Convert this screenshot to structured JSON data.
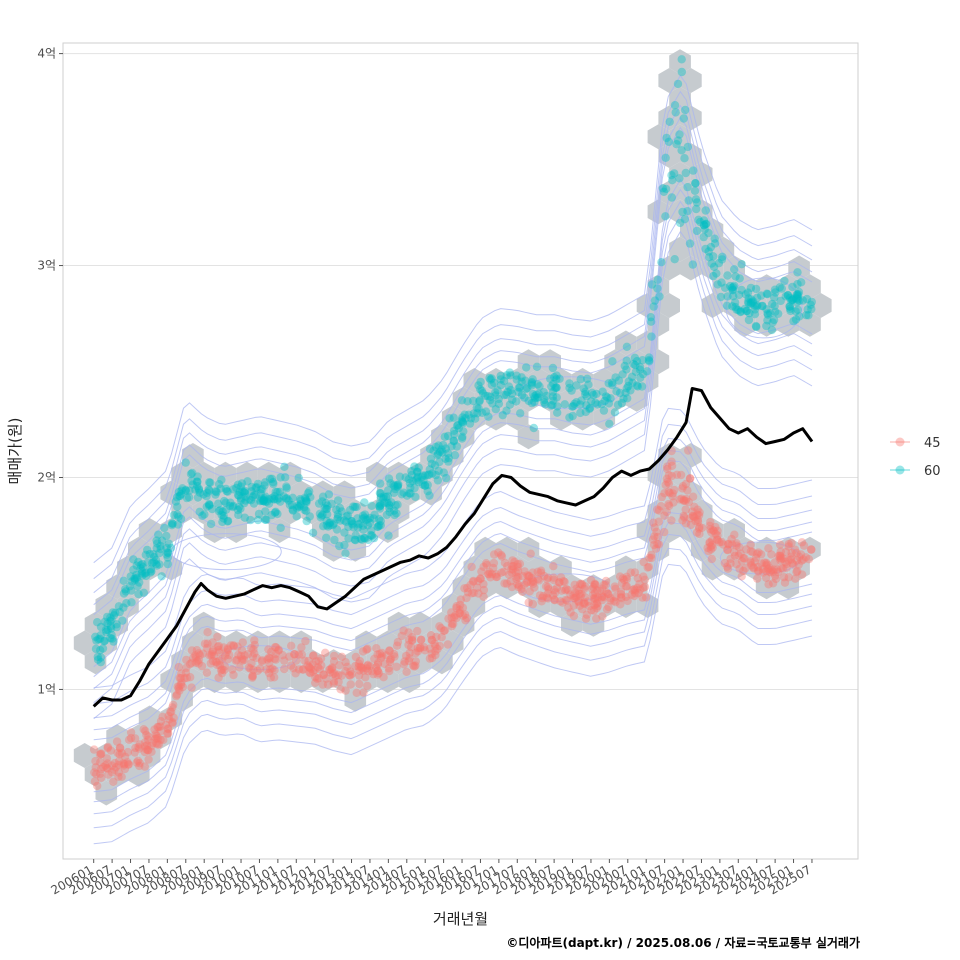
{
  "chart_data": {
    "type": "scatter",
    "xlabel": "거래년월",
    "ylabel": "매매가(원)",
    "x_ticks": [
      "200601",
      "200607",
      "200701",
      "200707",
      "200801",
      "200807",
      "200901",
      "200907",
      "201001",
      "201007",
      "201101",
      "201107",
      "201201",
      "201207",
      "201301",
      "201307",
      "201401",
      "201407",
      "201501",
      "201507",
      "201601",
      "201607",
      "201701",
      "201707",
      "201801",
      "201807",
      "201901",
      "201907",
      "202001",
      "202007",
      "202101",
      "202107",
      "202201",
      "202207",
      "202301",
      "202307",
      "202401",
      "202407",
      "202501",
      "202507"
    ],
    "y_ticks": [
      {
        "value": 100000000,
        "label": "1억"
      },
      {
        "value": 200000000,
        "label": "2억"
      },
      {
        "value": 300000000,
        "label": "3억"
      },
      {
        "value": 400000000,
        "label": "4억"
      }
    ],
    "ylim": [
      20000000,
      405000000
    ],
    "xlim": [
      "2005-03",
      "2026-10"
    ],
    "grid": "horizontal",
    "legend_placement": "right",
    "legend": [
      {
        "name": "45",
        "color": "#f8766d"
      },
      {
        "name": "60",
        "color": "#00bfc4"
      }
    ],
    "colors": {
      "hexbin": "#c6cbcf",
      "contour": "#aab6f0",
      "median_line": "#000000"
    },
    "series": [
      {
        "name": "45",
        "trend": [
          [
            "2006-01",
            64000000
          ],
          [
            "2006-07",
            65000000
          ],
          [
            "2007-01",
            70000000
          ],
          [
            "2007-07",
            74000000
          ],
          [
            "2008-01",
            82000000
          ],
          [
            "2008-07",
            110000000
          ],
          [
            "2009-01",
            118000000
          ],
          [
            "2009-07",
            115000000
          ],
          [
            "2010-01",
            116000000
          ],
          [
            "2010-07",
            112000000
          ],
          [
            "2011-01",
            113000000
          ],
          [
            "2011-07",
            112000000
          ],
          [
            "2012-01",
            111000000
          ],
          [
            "2012-07",
            108000000
          ],
          [
            "2013-01",
            106000000
          ],
          [
            "2013-07",
            110000000
          ],
          [
            "2014-01",
            114000000
          ],
          [
            "2014-07",
            118000000
          ],
          [
            "2015-01",
            120000000
          ],
          [
            "2015-07",
            127000000
          ],
          [
            "2016-01",
            140000000
          ],
          [
            "2016-07",
            152000000
          ],
          [
            "2017-01",
            157000000
          ],
          [
            "2017-07",
            153000000
          ],
          [
            "2018-01",
            150000000
          ],
          [
            "2018-07",
            147000000
          ],
          [
            "2019-01",
            145000000
          ],
          [
            "2019-07",
            143000000
          ],
          [
            "2020-01",
            145000000
          ],
          [
            "2020-07",
            148000000
          ],
          [
            "2021-01",
            150000000
          ],
          [
            "2021-07",
            196000000
          ],
          [
            "2022-01",
            195000000
          ],
          [
            "2022-07",
            178000000
          ],
          [
            "2023-01",
            168000000
          ],
          [
            "2023-07",
            165000000
          ],
          [
            "2024-01",
            158000000
          ],
          [
            "2024-07",
            158000000
          ],
          [
            "2025-01",
            160000000
          ],
          [
            "2025-07",
            162000000
          ]
        ]
      },
      {
        "name": "60",
        "trend": [
          [
            "2006-01",
            123000000
          ],
          [
            "2006-07",
            130000000
          ],
          [
            "2007-01",
            150000000
          ],
          [
            "2007-07",
            158000000
          ],
          [
            "2008-01",
            167000000
          ],
          [
            "2008-07",
            200000000
          ],
          [
            "2009-01",
            192000000
          ],
          [
            "2009-07",
            188000000
          ],
          [
            "2010-01",
            190000000
          ],
          [
            "2010-07",
            192000000
          ],
          [
            "2011-01",
            190000000
          ],
          [
            "2011-07",
            188000000
          ],
          [
            "2012-01",
            185000000
          ],
          [
            "2012-07",
            180000000
          ],
          [
            "2013-01",
            178000000
          ],
          [
            "2013-07",
            180000000
          ],
          [
            "2014-01",
            190000000
          ],
          [
            "2014-07",
            195000000
          ],
          [
            "2015-01",
            200000000
          ],
          [
            "2015-07",
            210000000
          ],
          [
            "2016-01",
            225000000
          ],
          [
            "2016-07",
            238000000
          ],
          [
            "2017-01",
            243000000
          ],
          [
            "2017-07",
            242000000
          ],
          [
            "2018-01",
            240000000
          ],
          [
            "2018-07",
            240000000
          ],
          [
            "2019-01",
            238000000
          ],
          [
            "2019-07",
            237000000
          ],
          [
            "2020-01",
            240000000
          ],
          [
            "2020-07",
            245000000
          ],
          [
            "2021-01",
            250000000
          ],
          [
            "2021-07",
            340000000
          ],
          [
            "2022-01",
            355000000
          ],
          [
            "2022-07",
            320000000
          ],
          [
            "2023-01",
            295000000
          ],
          [
            "2023-07",
            285000000
          ],
          [
            "2024-01",
            280000000
          ],
          [
            "2024-07",
            282000000
          ],
          [
            "2025-01",
            285000000
          ],
          [
            "2025-07",
            280000000
          ]
        ]
      }
    ],
    "median_line": [
      [
        "2006-01",
        92000000
      ],
      [
        "2006-04",
        96000000
      ],
      [
        "2006-07",
        95000000
      ],
      [
        "2006-10",
        95000000
      ],
      [
        "2007-01",
        97000000
      ],
      [
        "2007-04",
        104000000
      ],
      [
        "2007-07",
        112000000
      ],
      [
        "2007-10",
        118000000
      ],
      [
        "2008-01",
        124000000
      ],
      [
        "2008-04",
        130000000
      ],
      [
        "2008-07",
        138000000
      ],
      [
        "2008-10",
        146000000
      ],
      [
        "2008-12",
        150000000
      ],
      [
        "2009-02",
        147000000
      ],
      [
        "2009-05",
        144000000
      ],
      [
        "2009-08",
        143000000
      ],
      [
        "2009-11",
        144000000
      ],
      [
        "2010-02",
        145000000
      ],
      [
        "2010-05",
        147000000
      ],
      [
        "2010-08",
        149000000
      ],
      [
        "2010-11",
        148000000
      ],
      [
        "2011-02",
        149000000
      ],
      [
        "2011-05",
        148000000
      ],
      [
        "2011-08",
        146000000
      ],
      [
        "2011-11",
        144000000
      ],
      [
        "2012-02",
        139000000
      ],
      [
        "2012-05",
        138000000
      ],
      [
        "2012-08",
        141000000
      ],
      [
        "2012-11",
        144000000
      ],
      [
        "2013-02",
        148000000
      ],
      [
        "2013-05",
        152000000
      ],
      [
        "2013-08",
        154000000
      ],
      [
        "2013-11",
        156000000
      ],
      [
        "2014-02",
        158000000
      ],
      [
        "2014-05",
        160000000
      ],
      [
        "2014-08",
        161000000
      ],
      [
        "2014-11",
        163000000
      ],
      [
        "2015-02",
        162000000
      ],
      [
        "2015-05",
        164000000
      ],
      [
        "2015-08",
        167000000
      ],
      [
        "2015-11",
        172000000
      ],
      [
        "2016-02",
        178000000
      ],
      [
        "2016-05",
        183000000
      ],
      [
        "2016-08",
        190000000
      ],
      [
        "2016-11",
        197000000
      ],
      [
        "2017-02",
        201000000
      ],
      [
        "2017-05",
        200000000
      ],
      [
        "2017-08",
        196000000
      ],
      [
        "2017-11",
        193000000
      ],
      [
        "2018-02",
        192000000
      ],
      [
        "2018-05",
        191000000
      ],
      [
        "2018-08",
        189000000
      ],
      [
        "2018-11",
        188000000
      ],
      [
        "2019-02",
        187000000
      ],
      [
        "2019-05",
        189000000
      ],
      [
        "2019-08",
        191000000
      ],
      [
        "2019-11",
        195000000
      ],
      [
        "2020-02",
        200000000
      ],
      [
        "2020-05",
        203000000
      ],
      [
        "2020-08",
        201000000
      ],
      [
        "2020-11",
        203000000
      ],
      [
        "2021-02",
        204000000
      ],
      [
        "2021-05",
        208000000
      ],
      [
        "2021-08",
        213000000
      ],
      [
        "2021-11",
        219000000
      ],
      [
        "2022-02",
        226000000
      ],
      [
        "2022-04",
        242000000
      ],
      [
        "2022-07",
        241000000
      ],
      [
        "2022-10",
        233000000
      ],
      [
        "2023-01",
        228000000
      ],
      [
        "2023-04",
        223000000
      ],
      [
        "2023-07",
        221000000
      ],
      [
        "2023-10",
        223000000
      ],
      [
        "2024-01",
        219000000
      ],
      [
        "2024-04",
        216000000
      ],
      [
        "2024-07",
        217000000
      ],
      [
        "2024-10",
        218000000
      ],
      [
        "2025-01",
        221000000
      ],
      [
        "2025-04",
        223000000
      ],
      [
        "2025-07",
        217000000
      ]
    ]
  },
  "caption": "©디아파트(dapt.kr) / 2025.08.06 / 자료=국토교통부 실거래가"
}
